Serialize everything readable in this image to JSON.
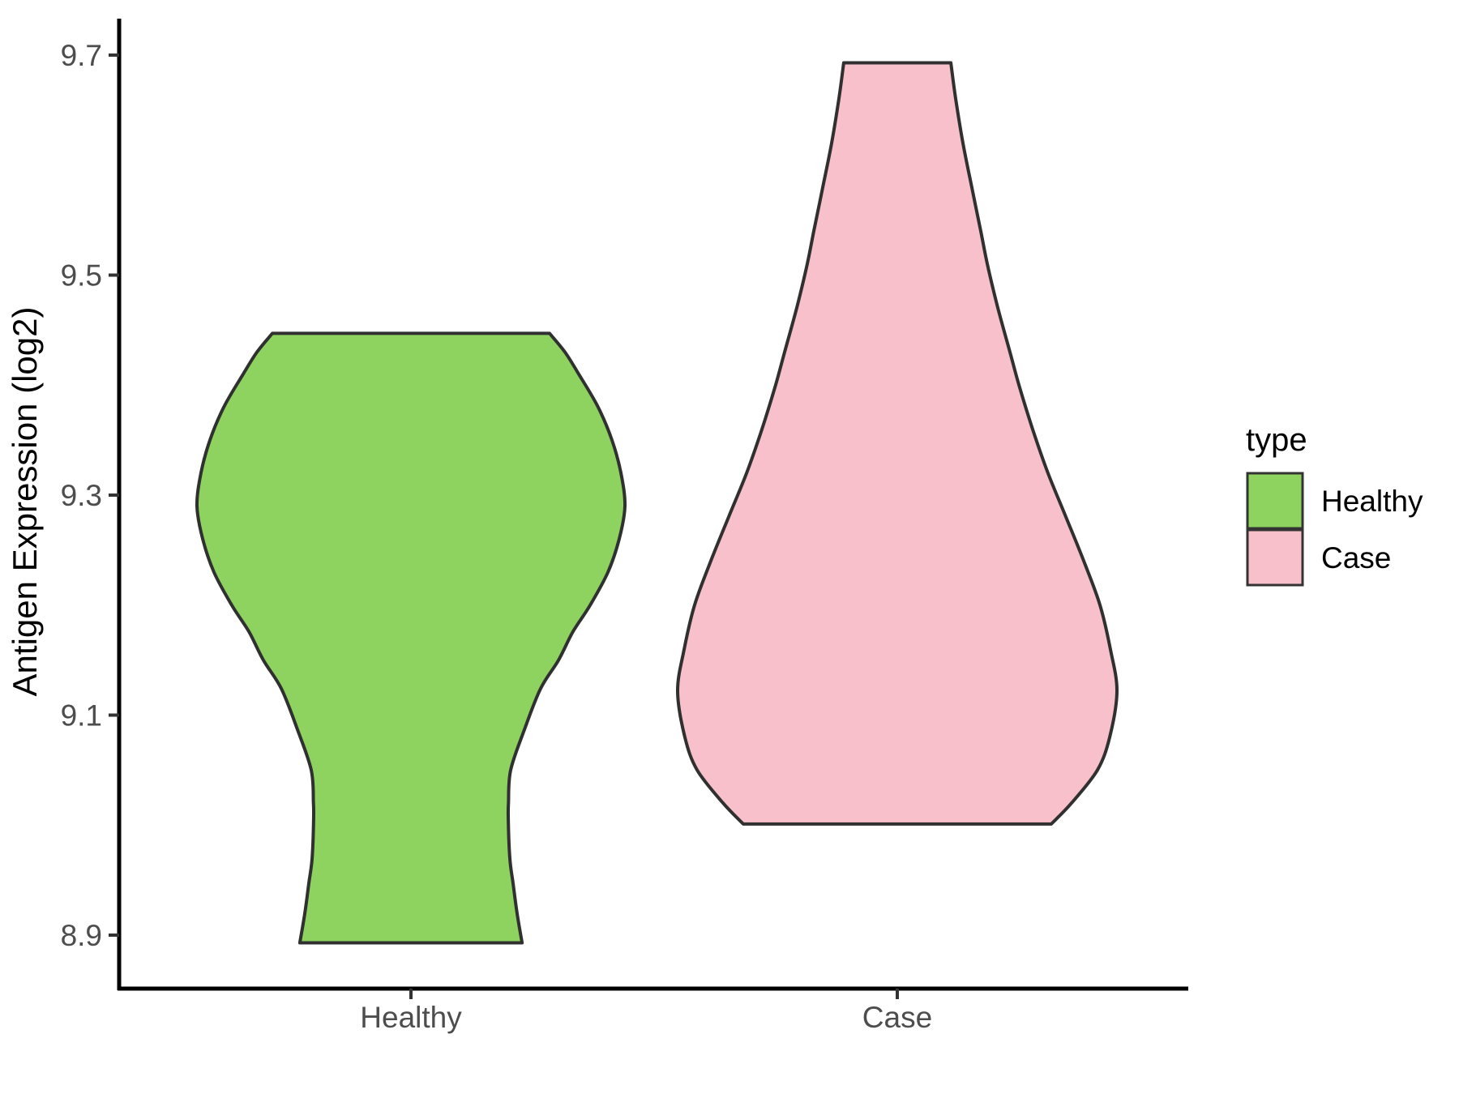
{
  "chart_data": {
    "type": "violin",
    "title": "",
    "ylabel": "Antigen Expression (log2)",
    "xlabel": "",
    "categories": [
      "Healthy",
      "Case"
    ],
    "y_ticks": [
      {
        "label": "8.9",
        "value": 8.9
      },
      {
        "label": "9.1",
        "value": 9.1
      },
      {
        "label": "9.3",
        "value": 9.3
      },
      {
        "label": "9.5",
        "value": 9.5
      },
      {
        "label": "9.7",
        "value": 9.7
      }
    ],
    "ylim": [
      8.85,
      9.73
    ],
    "grid": false,
    "theme": "classic",
    "colors": {
      "healthy_fill": "#8ED35F",
      "case_fill": "#F8C0CA",
      "violin_outline": "#303030",
      "axis_line": "#000000",
      "axis_text": "#4D4D4D"
    },
    "legend": {
      "title": "type",
      "position": "right",
      "items": [
        {
          "label": "Healthy",
          "color": "#8ED35F"
        },
        {
          "label": "Case",
          "color": "#F8C0CA"
        }
      ]
    },
    "series": [
      {
        "name": "Healthy",
        "fill": "#8ED35F",
        "outline": "#303030",
        "data_min": 8.89,
        "data_max": 9.45,
        "profile": [
          [
            9.447,
            0.631
          ],
          [
            9.43,
            0.701
          ],
          [
            9.41,
            0.764
          ],
          [
            9.38,
            0.852
          ],
          [
            9.35,
            0.915
          ],
          [
            9.32,
            0.956
          ],
          [
            9.29,
            0.974
          ],
          [
            9.26,
            0.948
          ],
          [
            9.23,
            0.897
          ],
          [
            9.2,
            0.816
          ],
          [
            9.176,
            0.738
          ],
          [
            9.15,
            0.672
          ],
          [
            9.124,
            0.59
          ],
          [
            9.087,
            0.517
          ],
          [
            9.05,
            0.454
          ],
          [
            9.02,
            0.444
          ],
          [
            9.005,
            0.443
          ],
          [
            8.97,
            0.45
          ],
          [
            8.947,
            0.465
          ],
          [
            8.92,
            0.483
          ],
          [
            8.893,
            0.506
          ]
        ]
      },
      {
        "name": "Case",
        "fill": "#F8C0CA",
        "outline": "#303030",
        "data_min": 9.0,
        "data_max": 9.69,
        "profile": [
          [
            9.693,
            0.244
          ],
          [
            9.66,
            0.266
          ],
          [
            9.62,
            0.299
          ],
          [
            9.58,
            0.339
          ],
          [
            9.54,
            0.38
          ],
          [
            9.51,
            0.41
          ],
          [
            9.47,
            0.458
          ],
          [
            9.43,
            0.513
          ],
          [
            9.4,
            0.554
          ],
          [
            9.36,
            0.616
          ],
          [
            9.32,
            0.686
          ],
          [
            9.28,
            0.768
          ],
          [
            9.24,
            0.849
          ],
          [
            9.2,
            0.923
          ],
          [
            9.16,
            0.97
          ],
          [
            9.122,
            1.0
          ],
          [
            9.08,
            0.967
          ],
          [
            9.05,
            0.911
          ],
          [
            9.02,
            0.793
          ],
          [
            9.001,
            0.701
          ]
        ]
      }
    ]
  }
}
